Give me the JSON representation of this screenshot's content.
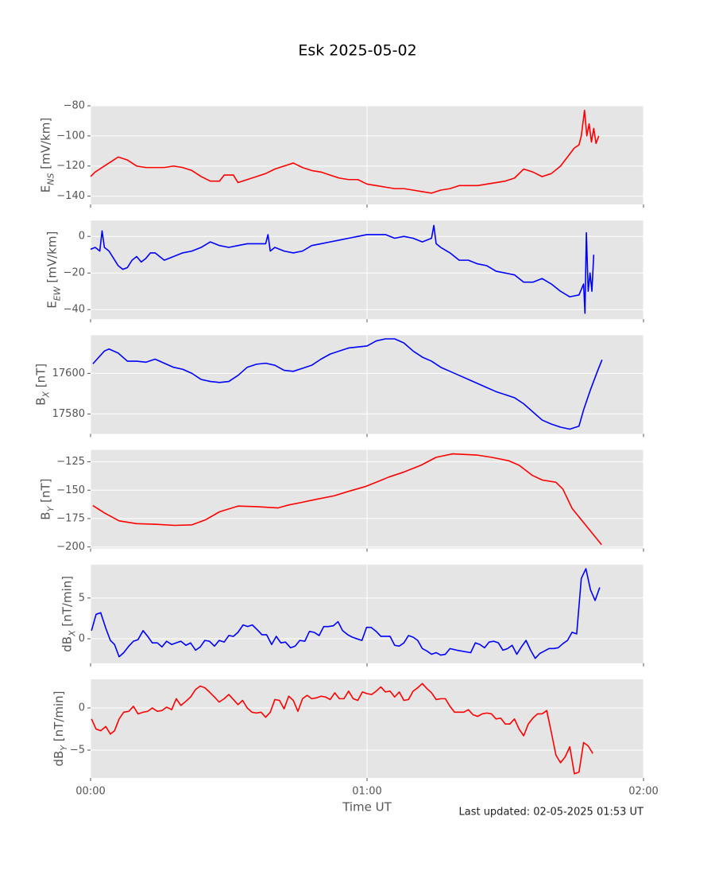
{
  "title": "Esk 2025-05-02",
  "footer": "Last updated: 02-05-2025 01:53 UT",
  "chart_data": [
    {
      "type": "line",
      "ylabel": [
        "E",
        "NS",
        " [mV/km]"
      ],
      "color": "#ff0000",
      "xlim": [
        0,
        120
      ],
      "xticks": [
        {
          "value": 0,
          "label": "00:00"
        },
        {
          "value": 60,
          "label": "01:00"
        },
        {
          "value": 120,
          "label": "02:00"
        }
      ],
      "ylim": [
        -145.5,
        -80
      ],
      "yticks": [
        {
          "value": -80,
          "label": "−80"
        },
        {
          "value": -100,
          "label": "−100"
        },
        {
          "value": -120,
          "label": "−120"
        },
        {
          "value": -140,
          "label": "−140"
        }
      ],
      "grid": true,
      "x": [
        0,
        1,
        2,
        3,
        4,
        5,
        6,
        7,
        8,
        9,
        10,
        12,
        14,
        16,
        18,
        20,
        22,
        24,
        26,
        28,
        29,
        31,
        32,
        34,
        36,
        38,
        40,
        42,
        44,
        46,
        48,
        50,
        52,
        54,
        56,
        58,
        60,
        62,
        64,
        66,
        68,
        70,
        72,
        74,
        76,
        78,
        80,
        82,
        84,
        86,
        88,
        90,
        92,
        94,
        96,
        98,
        100,
        102,
        104,
        105,
        106,
        106.5,
        107.2,
        107.7,
        108.2,
        108.7,
        109.2,
        109.7,
        110.3
      ],
      "values": [
        -127,
        -124,
        -122,
        -120,
        -118,
        -116,
        -114,
        -115,
        -116,
        -118,
        -120,
        -121,
        -121,
        -121,
        -120,
        -121,
        -123,
        -127,
        -130,
        -130,
        -126,
        -126,
        -131,
        -129,
        -127,
        -125,
        -122,
        -120,
        -118,
        -121,
        -123,
        -124,
        -126,
        -128,
        -129,
        -129,
        -132,
        -133,
        -134,
        -135,
        -135,
        -136,
        -137,
        -138,
        -136,
        -135,
        -133,
        -133,
        -133,
        -132,
        -131,
        -130,
        -128,
        -122,
        -124,
        -127,
        -125,
        -120,
        -112,
        -108,
        -106,
        -100,
        -83,
        -100,
        -92,
        -104,
        -95,
        -105,
        -100
      ]
    },
    {
      "type": "line",
      "ylabel": [
        "E",
        "EW",
        " [mV/km]"
      ],
      "color": "#0000ff",
      "xlim": [
        0,
        120
      ],
      "xticks": [
        {
          "value": 0,
          "label": "00:00"
        },
        {
          "value": 60,
          "label": "01:00"
        },
        {
          "value": 120,
          "label": "02:00"
        }
      ],
      "ylim": [
        -45.2,
        8.7
      ],
      "yticks": [
        0,
        {
          "value": -20,
          "label": "−20"
        },
        {
          "value": -40,
          "label": "−40"
        }
      ],
      "grid": true,
      "x": [
        0,
        1,
        2,
        2.5,
        3,
        4,
        5,
        6,
        7,
        8,
        9,
        10,
        11,
        12,
        13,
        14,
        15,
        16,
        18,
        20,
        22,
        24,
        26,
        28,
        30,
        32,
        34,
        36,
        38,
        38.5,
        39,
        40,
        42,
        44,
        46,
        48,
        50,
        52,
        54,
        56,
        58,
        60,
        62,
        64,
        66,
        68,
        70,
        72,
        74,
        74.5,
        75,
        76,
        78,
        80,
        82,
        84,
        86,
        88,
        90,
        92,
        94,
        96,
        98,
        100,
        102,
        104,
        106,
        107,
        107.3,
        107.6,
        108,
        108.4,
        108.8,
        109.2
      ],
      "values": [
        -7,
        -6,
        -8,
        3,
        -6,
        -8,
        -12,
        -16,
        -18,
        -17,
        -13,
        -11,
        -14,
        -12,
        -9,
        -9,
        -11,
        -13,
        -11,
        -9,
        -8,
        -6,
        -3,
        -5,
        -6,
        -5,
        -4,
        -4,
        -4,
        1,
        -8,
        -6,
        -8,
        -9,
        -8,
        -5,
        -4,
        -3,
        -2,
        -1,
        0,
        1,
        1,
        1,
        -1,
        0,
        -1,
        -3,
        -1,
        6,
        -4,
        -6,
        -9,
        -13,
        -13,
        -15,
        -16,
        -19,
        -20,
        -21,
        -25,
        -25,
        -23,
        -26,
        -30,
        -33,
        -32,
        -26,
        -42,
        2,
        -30,
        -20,
        -30,
        -10
      ]
    },
    {
      "type": "line",
      "ylabel": [
        "B",
        "X",
        " [nT]"
      ],
      "color": "#0000ff",
      "xlim": [
        0,
        120
      ],
      "xticks": [
        {
          "value": 0,
          "label": "00:00"
        },
        {
          "value": 60,
          "label": "01:00"
        },
        {
          "value": 120,
          "label": "02:00"
        }
      ],
      "ylim": [
        17570.2,
        17618.8
      ],
      "yticks": [
        17600,
        17580
      ],
      "grid": true,
      "x": [
        0.5,
        3,
        4,
        6,
        8,
        10,
        12,
        14,
        16,
        18,
        20,
        22,
        24,
        26,
        28,
        30,
        32,
        34,
        36,
        38,
        40,
        42,
        44,
        46,
        48,
        50,
        52,
        54,
        56,
        58,
        60,
        62,
        64,
        66,
        68,
        70,
        72,
        74,
        76,
        78,
        80,
        82,
        84,
        86,
        88,
        90,
        92,
        94,
        96,
        98,
        100,
        102,
        104,
        106,
        107,
        108.5,
        110,
        111
      ],
      "values": [
        17604.7,
        17611,
        17612,
        17610,
        17606,
        17606,
        17605.5,
        17607,
        17605,
        17603,
        17602,
        17600,
        17597,
        17596,
        17595.5,
        17596,
        17599,
        17603,
        17604.5,
        17605,
        17604,
        17601.5,
        17601,
        17602.5,
        17604,
        17607,
        17609.5,
        17611,
        17612.5,
        17613,
        17613.5,
        17616,
        17617,
        17617,
        17615,
        17611,
        17608,
        17606,
        17603,
        17601,
        17599,
        17597,
        17595,
        17593,
        17591,
        17589.5,
        17588,
        17585,
        17581,
        17577,
        17575,
        17573.5,
        17572.5,
        17574,
        17582,
        17592,
        17601,
        17606.7
      ]
    },
    {
      "type": "line",
      "ylabel": [
        "B",
        "Y",
        " [nT]"
      ],
      "color": "#ff0000",
      "xlim": [
        0,
        120
      ],
      "xticks": [
        {
          "value": 0,
          "label": "00:00"
        },
        {
          "value": 60,
          "label": "01:00"
        },
        {
          "value": 120,
          "label": "02:00"
        }
      ],
      "ylim": [
        -201.4,
        -114.5
      ],
      "yticks": [
        {
          "value": -125,
          "label": "−125"
        },
        {
          "value": -150,
          "label": "−150"
        },
        {
          "value": -175,
          "label": "−175"
        },
        {
          "value": -200,
          "label": "−200"
        }
      ],
      "grid": true,
      "x": [
        0.5,
        3,
        6.2,
        10,
        14,
        18.3,
        22,
        25,
        28,
        32,
        36,
        40.7,
        43,
        45.9,
        49,
        52.8,
        56,
        59.7,
        62,
        64.8,
        68,
        71.7,
        75,
        78.6,
        83.8,
        87,
        90.7,
        93,
        95.9,
        98,
        101,
        102.5,
        104.5,
        107.9,
        110.9
      ],
      "values": [
        -163.5,
        -170,
        -177,
        -179.5,
        -180,
        -181,
        -180.5,
        -176,
        -169,
        -164,
        -164.5,
        -165.6,
        -163,
        -160.7,
        -158,
        -155,
        -151,
        -146.7,
        -143,
        -138.3,
        -134,
        -128,
        -121,
        -118,
        -119,
        -121,
        -124,
        -128,
        -137,
        -141,
        -143,
        -149,
        -166,
        -183,
        -198
      ]
    },
    {
      "type": "line",
      "ylabel": [
        "dB",
        "X",
        " [nT/min]"
      ],
      "color": "#0000ff",
      "xlim": [
        0,
        120
      ],
      "xticks": [
        {
          "value": 0,
          "label": "00:00"
        },
        {
          "value": 60,
          "label": "01:00"
        },
        {
          "value": 120,
          "label": "02:00"
        }
      ],
      "ylim": [
        -3.0,
        9.1
      ],
      "yticks": [
        5,
        0
      ],
      "grid": true,
      "x": [
        0.2,
        1.2,
        2.2,
        3.3,
        4.3,
        5.2,
        6.2,
        7.2,
        8.3,
        9.3,
        10.3,
        11.4,
        12.4,
        13.4,
        14.5,
        15.5,
        16.5,
        17.6,
        18.6,
        19.6,
        20.7,
        21.7,
        22.8,
        23.8,
        24.8,
        25.8,
        26.9,
        27.9,
        29,
        30,
        31,
        32,
        33.1,
        34.1,
        35.1,
        36.2,
        37.2,
        38.2,
        39.3,
        40.3,
        41.3,
        42.3,
        43.4,
        44.4,
        45.4,
        46.5,
        47.5,
        48.5,
        49.6,
        50.6,
        51.6,
        52.7,
        53.7,
        54.7,
        55.8,
        56.8,
        57.8,
        58.9,
        59.9,
        60.9,
        62,
        63,
        64,
        65,
        66,
        67,
        68,
        69,
        70,
        71,
        72,
        73,
        74,
        75,
        76,
        77,
        78,
        79.5,
        82.5,
        83.5,
        84.5,
        85.5,
        86.5,
        87.5,
        88.5,
        89.5,
        90.5,
        91.5,
        92.5,
        93.5,
        94.5,
        95.5,
        96.5,
        97.5,
        98.5,
        99.5,
        100.5,
        101.5,
        102.5,
        103.5,
        104.5,
        105.5,
        106.5,
        107.5,
        108.5,
        109.5,
        110.5
      ],
      "values": [
        1.0,
        3.0,
        3.2,
        1.3,
        -0.2,
        -0.7,
        -2.2,
        -1.7,
        -0.9,
        -0.3,
        -0.1,
        1.0,
        0.3,
        -0.5,
        -0.5,
        -1.0,
        -0.3,
        -0.7,
        -0.5,
        -0.3,
        -0.8,
        -0.5,
        -1.4,
        -1.0,
        -0.2,
        -0.3,
        -0.9,
        -0.2,
        -0.4,
        0.4,
        0.3,
        0.8,
        1.7,
        1.5,
        1.7,
        1.1,
        0.5,
        0.5,
        -0.7,
        0.3,
        -0.5,
        -0.4,
        -1.1,
        -0.9,
        -0.2,
        -0.3,
        0.9,
        0.8,
        0.4,
        1.5,
        1.5,
        1.6,
        2.1,
        1.0,
        0.5,
        0.2,
        0.0,
        -0.2,
        1.4,
        1.4,
        0.9,
        0.3,
        0.3,
        0.3,
        -0.8,
        -0.9,
        -0.5,
        0.4,
        0.2,
        -0.2,
        -1.2,
        -1.5,
        -1.9,
        -1.7,
        -2.0,
        -1.9,
        -1.2,
        -1.4,
        -1.7,
        -0.5,
        -0.7,
        -1.1,
        -0.4,
        -0.3,
        -0.5,
        -1.4,
        -1.2,
        -0.8,
        -1.9,
        -1.0,
        -0.2,
        -1.4,
        -2.4,
        -1.8,
        -1.5,
        -1.2,
        -1.2,
        -1.1,
        -0.6,
        -0.2,
        0.8,
        0.6,
        7.4,
        8.6,
        6.0,
        4.7,
        6.3
      ]
    },
    {
      "type": "line",
      "ylabel": [
        "dB",
        "Y",
        " [nT/min]"
      ],
      "color": "#ff0000",
      "xlabel": "Time UT",
      "xlim": [
        0,
        120
      ],
      "xticks": [
        {
          "value": 0,
          "label": "00:00"
        },
        {
          "value": 60,
          "label": "01:00"
        },
        {
          "value": 120,
          "label": "02:00"
        }
      ],
      "ylim": [
        -8.3,
        3.4
      ],
      "yticks": [
        0,
        {
          "value": -5,
          "label": "−5"
        }
      ],
      "grid": true,
      "x": [
        0.2,
        1.2,
        2.2,
        3.3,
        4.3,
        5.2,
        6.2,
        7.2,
        8.3,
        9.3,
        10.3,
        11.4,
        12.4,
        13.4,
        14.5,
        15.5,
        16.5,
        17.6,
        18.6,
        19.6,
        20.7,
        21.7,
        22.8,
        23.8,
        24.8,
        25.8,
        26.9,
        27.9,
        29,
        30,
        31,
        32,
        33,
        34,
        35,
        36,
        37,
        38,
        39,
        40,
        41,
        42,
        43,
        44,
        45,
        46,
        47,
        48,
        49,
        50,
        51,
        52,
        53,
        54,
        55,
        56,
        57,
        58,
        59,
        60,
        61,
        62,
        63,
        64,
        65,
        66,
        67,
        68,
        69,
        70,
        71,
        72,
        73,
        74,
        75,
        76,
        77,
        78,
        79,
        80,
        81,
        82,
        83,
        84,
        85,
        86,
        87,
        88,
        89,
        90,
        91,
        92,
        93,
        94,
        95,
        96,
        97,
        98,
        99,
        100,
        101,
        102,
        103,
        104,
        105,
        106,
        107,
        108,
        109
      ],
      "values": [
        -1.3,
        -2.5,
        -2.7,
        -2.2,
        -3.1,
        -2.7,
        -1.3,
        -0.5,
        -0.4,
        0.2,
        -0.7,
        -0.5,
        -0.4,
        0.0,
        -0.4,
        -0.3,
        0.1,
        -0.2,
        1.1,
        0.3,
        0.8,
        1.3,
        2.2,
        2.6,
        2.4,
        1.9,
        1.3,
        0.7,
        1.1,
        1.6,
        1.0,
        0.4,
        0.9,
        0.0,
        -0.5,
        -0.6,
        -0.5,
        -1.1,
        -0.5,
        1.0,
        0.9,
        -0.1,
        1.4,
        0.9,
        -0.4,
        1.1,
        1.5,
        1.1,
        1.2,
        1.4,
        1.3,
        1.0,
        1.8,
        1.1,
        1.1,
        2.0,
        1.1,
        0.9,
        1.9,
        1.7,
        1.6,
        2.0,
        2.5,
        1.9,
        2.0,
        1.3,
        1.9,
        0.9,
        1.0,
        2.0,
        2.4,
        2.9,
        2.3,
        1.8,
        1.0,
        1.1,
        1.1,
        0.2,
        -0.5,
        -0.5,
        -0.5,
        -0.2,
        -0.8,
        -1.0,
        -0.7,
        -0.6,
        -0.7,
        -1.3,
        -1.2,
        -1.9,
        -1.9,
        -1.3,
        -2.5,
        -3.3,
        -1.9,
        -1.2,
        -0.7,
        -0.7,
        -0.3,
        -2.9,
        -5.6,
        -6.5,
        -5.8,
        -4.6,
        -7.8,
        -7.6,
        -4.1,
        -4.5,
        -5.4
      ]
    }
  ]
}
